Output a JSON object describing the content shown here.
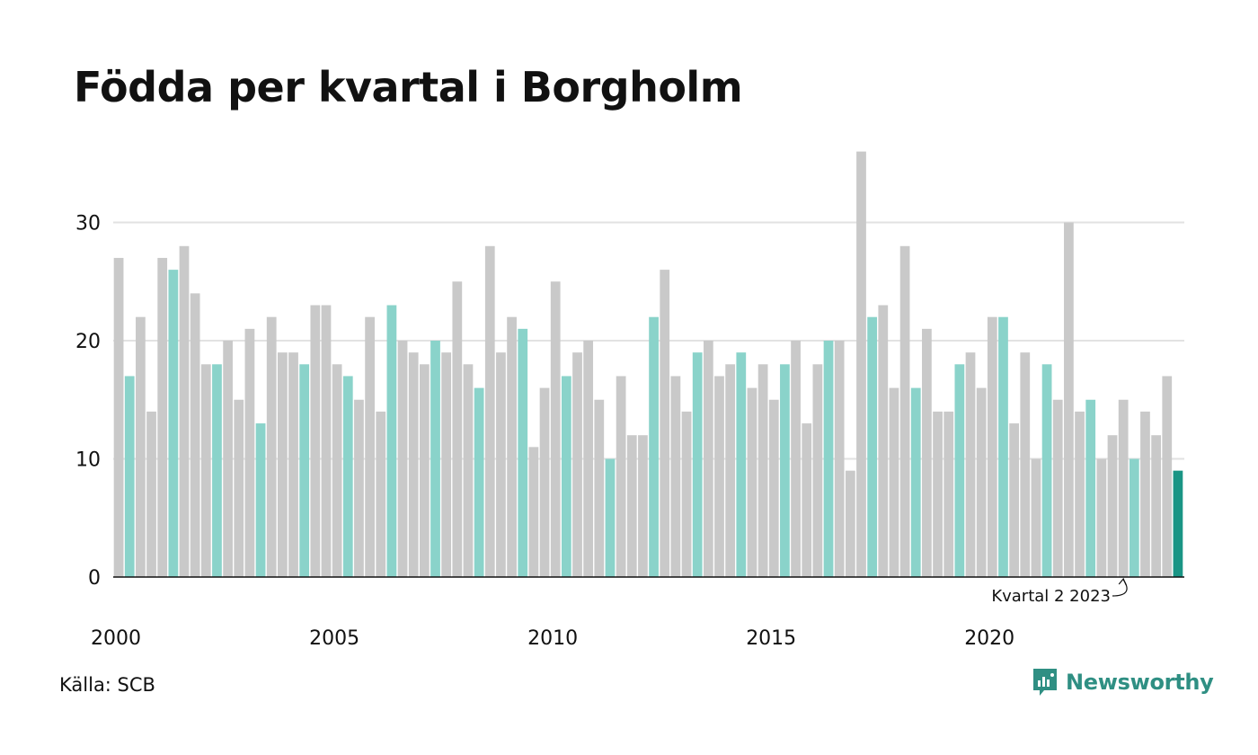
{
  "title": "Födda per kvartal i Borgholm",
  "source": "Källa: SCB",
  "brand": "Newsworthy",
  "colors": {
    "bar": "#c9c9c9",
    "highlight_quarter": "#8ad3ca",
    "latest": "#1a9585",
    "grid": "#e2e2e2",
    "axis": "#111111",
    "brand": "#2f8f83"
  },
  "chart_data": {
    "type": "bar",
    "start_year": 2000,
    "highlight_quarter": 2,
    "x_tick_labels": [
      "2000",
      "2005",
      "2010",
      "2015",
      "2020"
    ],
    "y_ticks": [
      0,
      10,
      20,
      30
    ],
    "ylim": [
      0,
      37
    ],
    "annotation": "Kvartal 2 2023",
    "values": [
      27,
      17,
      22,
      14,
      27,
      26,
      28,
      24,
      18,
      18,
      20,
      15,
      21,
      13,
      22,
      19,
      19,
      18,
      23,
      23,
      18,
      17,
      15,
      22,
      14,
      23,
      20,
      19,
      18,
      20,
      19,
      25,
      18,
      16,
      28,
      19,
      22,
      21,
      11,
      16,
      25,
      17,
      19,
      20,
      15,
      10,
      17,
      12,
      12,
      22,
      26,
      17,
      14,
      19,
      20,
      17,
      18,
      19,
      16,
      18,
      15,
      18,
      20,
      13,
      18,
      20,
      20,
      9,
      36,
      22,
      23,
      16,
      28,
      16,
      21,
      14,
      14,
      18,
      19,
      16,
      22,
      22,
      13,
      19,
      10,
      18,
      15,
      30,
      14,
      15,
      10,
      12,
      15,
      10,
      14,
      12,
      17,
      9
    ]
  }
}
